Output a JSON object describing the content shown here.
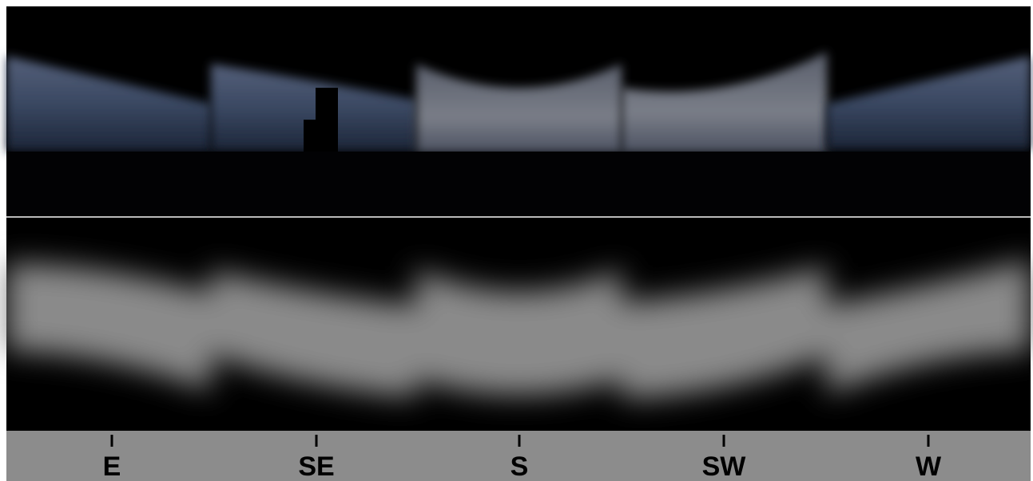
{
  "labels": [
    "E",
    "SE",
    "S",
    "SW",
    "W"
  ]
}
